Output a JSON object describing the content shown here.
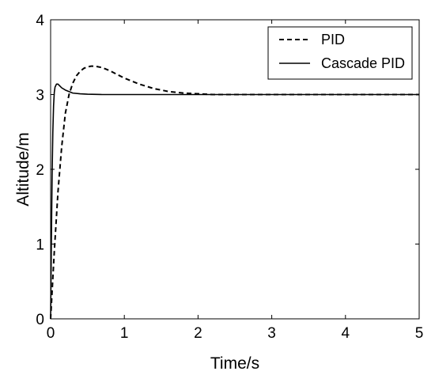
{
  "chart_data": {
    "type": "line",
    "xlabel": "Time/s",
    "ylabel": "Altitude/m",
    "xlim": [
      0,
      5
    ],
    "ylim": [
      0,
      4
    ],
    "xticks": [
      "0",
      "1",
      "2",
      "3",
      "4",
      "5"
    ],
    "yticks": [
      "0",
      "1",
      "2",
      "3",
      "4"
    ],
    "grid": false,
    "legend_position": "top-right",
    "series": [
      {
        "name": "PID",
        "style": "dashed",
        "color": "#000000",
        "x": [
          0,
          0.05,
          0.1,
          0.15,
          0.2,
          0.25,
          0.3,
          0.35,
          0.4,
          0.45,
          0.5,
          0.55,
          0.6,
          0.7,
          0.8,
          0.9,
          1.0,
          1.2,
          1.4,
          1.6,
          1.8,
          2.0,
          2.2,
          2.5,
          3.0,
          4.0,
          5.0
        ],
        "y": [
          0,
          0.9,
          1.7,
          2.3,
          2.75,
          3.0,
          3.15,
          3.25,
          3.31,
          3.35,
          3.37,
          3.38,
          3.38,
          3.36,
          3.32,
          3.27,
          3.22,
          3.14,
          3.08,
          3.04,
          3.02,
          3.01,
          3.0,
          3.0,
          3.0,
          3.0,
          3.0
        ]
      },
      {
        "name": "Cascade PID",
        "style": "solid",
        "color": "#000000",
        "x": [
          0,
          0.01,
          0.02,
          0.03,
          0.04,
          0.05,
          0.06,
          0.08,
          0.1,
          0.12,
          0.15,
          0.2,
          0.25,
          0.3,
          0.4,
          0.5,
          0.7,
          1.0,
          2.0,
          3.0,
          4.0,
          5.0
        ],
        "y": [
          0,
          1.0,
          1.9,
          2.5,
          2.85,
          3.03,
          3.1,
          3.14,
          3.14,
          3.12,
          3.09,
          3.06,
          3.04,
          3.02,
          3.01,
          3.005,
          3.0,
          3.0,
          3.0,
          3.0,
          3.0,
          3.0
        ]
      }
    ]
  }
}
